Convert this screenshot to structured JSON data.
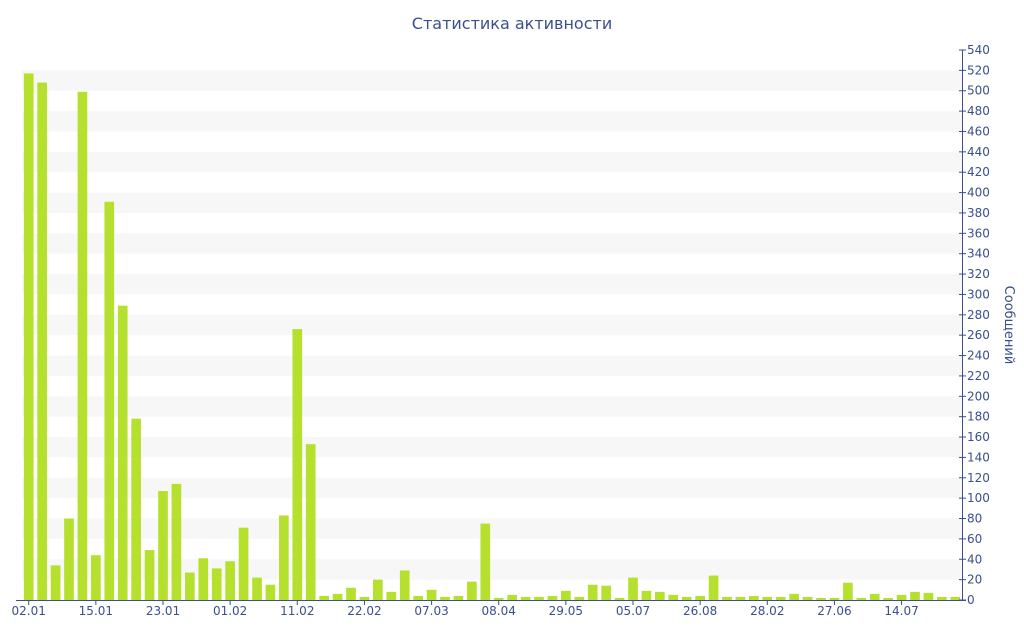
{
  "chart_data": {
    "type": "bar",
    "title": "Статистика активности",
    "ylabel": "Сообщений",
    "xlabel": "",
    "ylim": [
      0,
      540
    ],
    "ytick_step": 20,
    "grid": "horizontal alternating bands",
    "y_axis_side": "right",
    "colors": {
      "bar": "#b5e02e",
      "axis": "#3b4f8f",
      "band": "#f7f7f7"
    },
    "x_tick_labels": [
      {
        "label": "02.01",
        "index": 0
      },
      {
        "label": "15.01",
        "index": 5
      },
      {
        "label": "23.01",
        "index": 10
      },
      {
        "label": "01.02",
        "index": 15
      },
      {
        "label": "11.02",
        "index": 20
      },
      {
        "label": "22.02",
        "index": 25
      },
      {
        "label": "07.03",
        "index": 30
      },
      {
        "label": "08.04",
        "index": 35
      },
      {
        "label": "29.05",
        "index": 40
      },
      {
        "label": "05.07",
        "index": 45
      },
      {
        "label": "26.08",
        "index": 50
      },
      {
        "label": "28.02",
        "index": 55
      },
      {
        "label": "27.06",
        "index": 60
      },
      {
        "label": "14.07",
        "index": 65
      }
    ],
    "values": [
      517,
      508,
      34,
      80,
      499,
      44,
      391,
      289,
      178,
      49,
      107,
      114,
      27,
      41,
      31,
      38,
      71,
      22,
      15,
      83,
      266,
      153,
      4,
      6,
      12,
      3,
      20,
      8,
      29,
      4,
      10,
      3,
      4,
      18,
      75,
      2,
      5,
      3,
      3,
      4,
      9,
      3,
      15,
      14,
      2,
      22,
      9,
      8,
      5,
      3,
      4,
      24,
      3,
      3,
      4,
      3,
      3,
      6,
      3,
      2,
      2,
      17,
      2,
      6,
      2,
      5,
      8,
      7,
      3,
      3
    ]
  }
}
